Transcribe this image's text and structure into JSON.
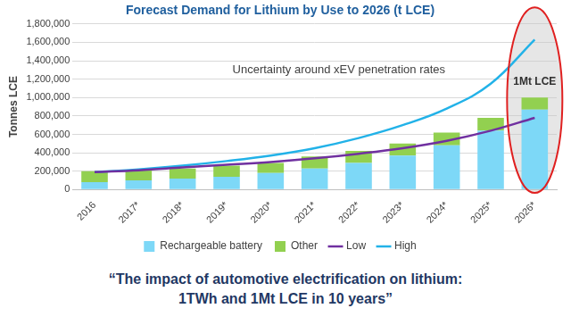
{
  "chart_data": {
    "type": "bar",
    "title": "Forecast Demand for Lithium by Use to 2026 (t LCE)",
    "subtitle": [
      "“The impact of automotive electrification on lithium:",
      "1TWh and 1Mt LCE in 10 years”"
    ],
    "y_label": "Tonnes LCE",
    "annotations": [
      "Uncertainty around xEV penetration rates",
      "1Mt LCE"
    ],
    "categories": [
      "2016",
      "2017*",
      "2018*",
      "2019*",
      "2020*",
      "2021*",
      "2022*",
      "2023*",
      "2024*",
      "2025*",
      "2026*"
    ],
    "series": [
      {
        "name": "Rechargeable battery",
        "type": "bar",
        "color": "#7dd8f7",
        "values": [
          80000,
          100000,
          120000,
          140000,
          180000,
          230000,
          290000,
          370000,
          480000,
          640000,
          870000
        ]
      },
      {
        "name": "Other",
        "type": "bar",
        "color": "#92d050",
        "values": [
          120000,
          110000,
          110000,
          120000,
          110000,
          130000,
          130000,
          130000,
          140000,
          140000,
          130000
        ]
      },
      {
        "name": "Low",
        "type": "line",
        "color": "#7030a0",
        "values": [
          190000,
          210000,
          240000,
          270000,
          300000,
          340000,
          390000,
          450000,
          530000,
          640000,
          780000
        ]
      },
      {
        "name": "High",
        "type": "line",
        "color": "#22b2e8",
        "values": [
          190000,
          220000,
          260000,
          310000,
          370000,
          450000,
          560000,
          700000,
          880000,
          1150000,
          1630000
        ]
      }
    ],
    "stacked": true,
    "ylim": [
      0,
      1800000
    ],
    "yticks": [
      0,
      {
        "value": 200000,
        "label": "200,000"
      },
      {
        "value": 400000,
        "label": "400,000"
      },
      {
        "value": 600000,
        "label": "600,000"
      },
      {
        "value": 800000,
        "label": "800,000"
      },
      {
        "value": 1000000,
        "label": "1,000,000"
      },
      {
        "value": 1200000,
        "label": "1,200,000"
      },
      {
        "value": 1400000,
        "label": "1,400,000"
      },
      {
        "value": 1600000,
        "label": "1,600,000"
      },
      {
        "value": 1800000,
        "label": "1,800,000"
      }
    ],
    "grid": true,
    "legend": "bottom"
  }
}
